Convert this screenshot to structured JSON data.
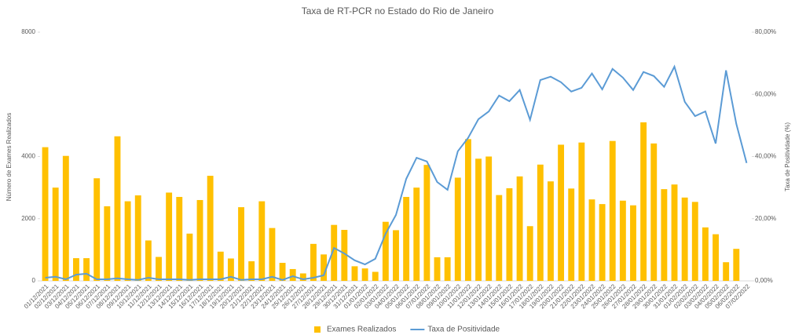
{
  "chart_data": {
    "type": "bar_line",
    "title": "Taxa de RT-PCR no Estado do Rio de Janeiro",
    "y_label": "Número de Exames Realizados",
    "y2_label": "Taxa de Positividade (%)",
    "categories": [
      "01/12/2021",
      "02/12/2021",
      "03/12/2021",
      "04/12/2021",
      "05/12/2021",
      "06/12/2021",
      "07/12/2021",
      "08/12/2021",
      "09/12/2021",
      "10/12/2021",
      "11/12/2021",
      "12/12/2021",
      "13/12/2021",
      "14/12/2021",
      "15/12/2021",
      "16/12/2021",
      "17/12/2021",
      "18/12/2021",
      "19/12/2021",
      "20/12/2021",
      "21/12/2021",
      "22/12/2021",
      "23/12/2021",
      "24/12/2021",
      "25/12/2021",
      "26/12/2021",
      "27/12/2021",
      "28/12/2021",
      "29/12/2021",
      "30/12/2021",
      "31/12/2021",
      "01/01/2022",
      "02/01/2022",
      "03/01/2022",
      "04/01/2022",
      "05/01/2022",
      "06/01/2022",
      "07/01/2022",
      "08/01/2022",
      "09/01/2022",
      "10/01/2022",
      "11/01/2022",
      "12/01/2022",
      "13/01/2022",
      "14/01/2022",
      "15/01/2022",
      "16/01/2022",
      "17/01/2022",
      "18/01/2022",
      "19/01/2022",
      "20/01/2022",
      "21/01/2022",
      "22/01/2022",
      "23/01/2022",
      "24/01/2022",
      "25/01/2022",
      "26/01/2022",
      "27/01/2022",
      "28/01/2022",
      "29/01/2022",
      "30/01/2022",
      "31/01/2022",
      "01/02/2022",
      "02/02/2022",
      "03/02/2022",
      "04/02/2022",
      "05/02/2022",
      "06/02/2022",
      "07/02/2022"
    ],
    "series": [
      {
        "name": "Exames Realizados",
        "type": "bar",
        "color": "#ffc000",
        "values": [
          4300,
          3000,
          4020,
          730,
          730,
          3300,
          2400,
          4650,
          2560,
          2750,
          1300,
          770,
          2840,
          2700,
          1520,
          2600,
          3380,
          940,
          720,
          2370,
          630,
          2560,
          1700,
          580,
          380,
          240,
          1190,
          850,
          1800,
          1640,
          470,
          400,
          290,
          1900,
          1630,
          2700,
          3000,
          3730,
          760,
          760,
          3320,
          4560,
          3930,
          4000,
          2760,
          2980,
          3360,
          1760,
          3740,
          3200,
          4380,
          2970,
          4450,
          2620,
          2470,
          4500,
          2580,
          2430,
          5100,
          4420,
          2950,
          3100,
          2680,
          2540,
          1720,
          1500,
          600,
          1030,
          null
        ]
      },
      {
        "name": "Taxa de Positividade",
        "type": "line",
        "axis": "y2",
        "color": "#5b9bd5",
        "values": [
          1.0,
          1.3,
          0.5,
          2.0,
          2.3,
          0.5,
          0.5,
          0.8,
          0.5,
          0.3,
          1.0,
          0.5,
          0.5,
          0.5,
          0.3,
          0.5,
          0.5,
          0.5,
          1.3,
          0.3,
          0.5,
          0.5,
          1.3,
          0.3,
          1.5,
          0.5,
          1.0,
          1.8,
          10.6,
          8.8,
          6.6,
          5.3,
          7.1,
          15.2,
          21.2,
          32.8,
          39.6,
          38.4,
          31.8,
          29.3,
          41.7,
          46.0,
          52.0,
          54.5,
          59.6,
          57.8,
          61.4,
          51.8,
          64.6,
          65.7,
          63.9,
          60.9,
          62.1,
          66.7,
          61.6,
          68.2,
          65.4,
          61.4,
          67.2,
          65.9,
          62.4,
          68.9,
          57.6,
          53.0,
          54.5,
          44.2,
          67.7,
          50.5,
          37.9
        ]
      }
    ],
    "ylim": [
      0,
      8000
    ],
    "yticks": [
      0,
      2000,
      4000,
      8000
    ],
    "y2lim": [
      0,
      80
    ],
    "y2ticks": [
      {
        "value": 0,
        "label": "0,00%"
      },
      {
        "value": 20,
        "label": "20,00%"
      },
      {
        "value": 40,
        "label": "40,00%"
      },
      {
        "value": 60,
        "label": "60,00%"
      },
      {
        "value": 80,
        "label": "80,00%"
      }
    ],
    "legend": "bottom"
  }
}
